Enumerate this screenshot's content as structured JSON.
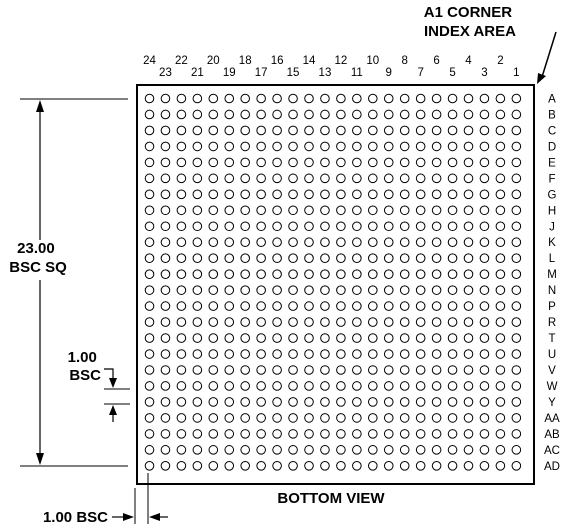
{
  "corner_label": [
    "A1 CORNER",
    "INDEX AREA"
  ],
  "columns": [
    "24",
    "23",
    "22",
    "21",
    "20",
    "19",
    "18",
    "17",
    "16",
    "15",
    "14",
    "13",
    "12",
    "11",
    "10",
    "9",
    "8",
    "7",
    "6",
    "5",
    "4",
    "3",
    "2",
    "1"
  ],
  "rows": [
    "A",
    "B",
    "C",
    "D",
    "E",
    "F",
    "G",
    "H",
    "J",
    "K",
    "L",
    "M",
    "N",
    "P",
    "R",
    "T",
    "U",
    "V",
    "W",
    "Y",
    "AA",
    "AB",
    "AC",
    "AD"
  ],
  "body_dimension": [
    "23.00",
    "BSC SQ"
  ],
  "pitch_vertical": [
    "1.00",
    "BSC"
  ],
  "pitch_horizontal": "1.00 BSC",
  "view_caption": "BOTTOM VIEW"
}
